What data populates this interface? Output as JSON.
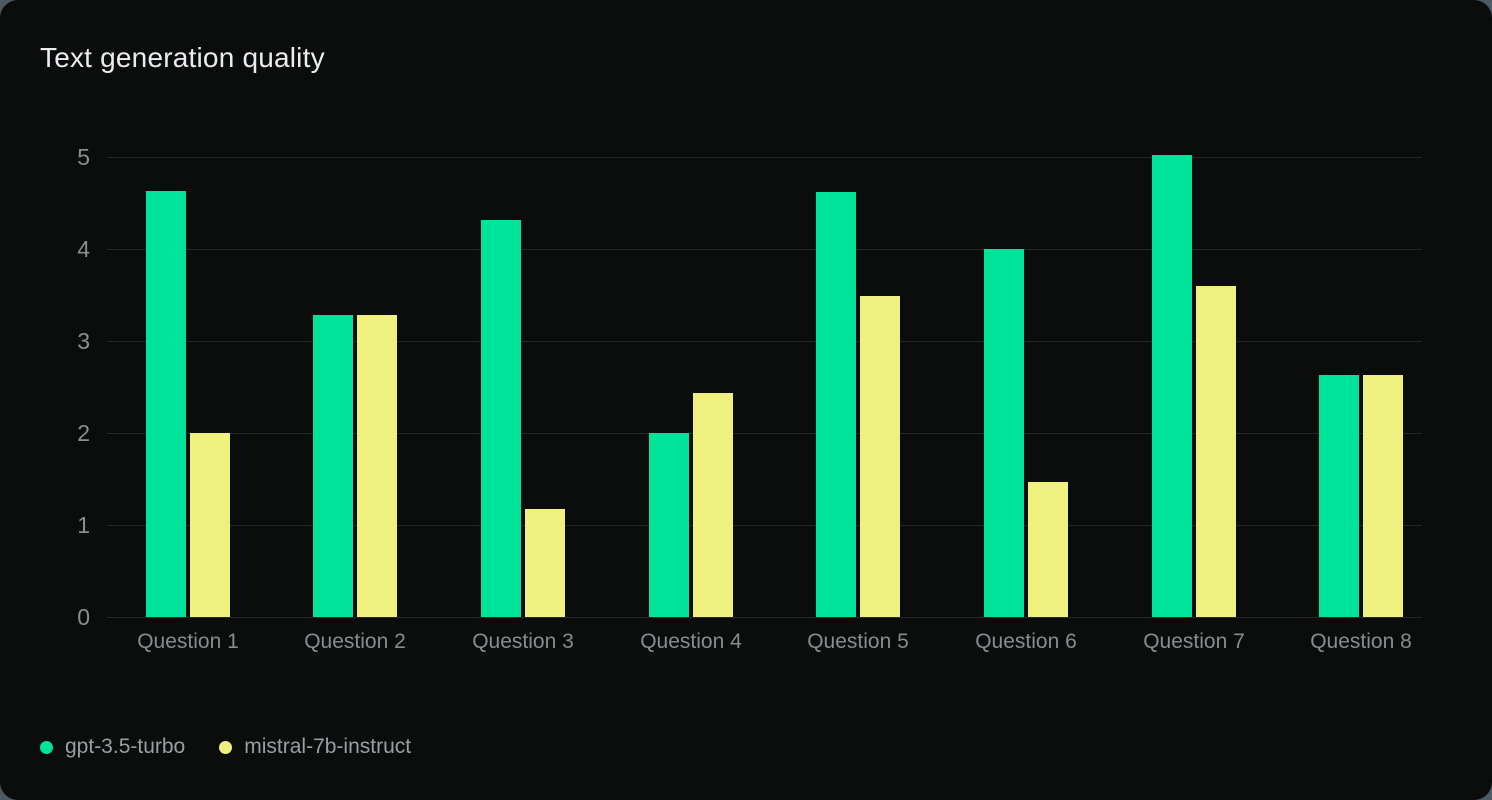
{
  "header": {
    "title": "Text generation quality"
  },
  "chart_data": {
    "type": "bar",
    "title": "Text generation quality",
    "categories": [
      "Question 1",
      "Question 2",
      "Question 3",
      "Question 4",
      "Question 5",
      "Question 6",
      "Question 7",
      "Question 8"
    ],
    "series": [
      {
        "name": "gpt-3.5-turbo",
        "color": "#00e39b",
        "values": [
          4.63,
          3.28,
          4.32,
          2.0,
          4.62,
          4.0,
          5.02,
          2.63
        ]
      },
      {
        "name": "mistral-7b-instruct",
        "color": "#eef17d",
        "values": [
          2.0,
          3.28,
          1.17,
          2.43,
          3.49,
          1.47,
          3.6,
          2.63
        ]
      }
    ],
    "xlabel": "",
    "ylabel": "",
    "ylim": [
      0,
      5
    ],
    "yticks": [
      0,
      1,
      2,
      3,
      4,
      5
    ],
    "grid": true,
    "legend_position": "bottom-left"
  },
  "colors": {
    "card_background": "#0b0c0c",
    "outer_background": "#4e5a63",
    "gridline": "#242628",
    "axis_text": "#8c8d93",
    "title_text": "#ececee",
    "legend_text": "#9c9da3"
  }
}
